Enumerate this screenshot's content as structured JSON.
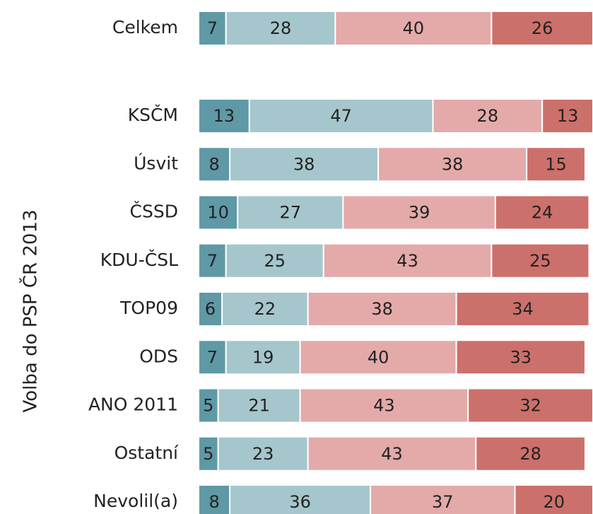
{
  "chart_data": {
    "type": "stacked-bar-horizontal",
    "y_label": "Volba do PSP ČR 2013",
    "categories": [
      "Celkem",
      null,
      "KSČM",
      "Úsvit",
      "ČSSD",
      "KDU-ČSL",
      "TOP09",
      "ODS",
      "ANO 2011",
      "Ostatní",
      "Nevolil(a)"
    ],
    "series": [
      {
        "color": "#5f99a6",
        "values": [
          7,
          null,
          13,
          8,
          10,
          7,
          6,
          7,
          5,
          5,
          8
        ]
      },
      {
        "color": "#a5c6cc",
        "values": [
          28,
          null,
          47,
          38,
          27,
          25,
          22,
          19,
          21,
          23,
          36
        ]
      },
      {
        "color": "#e3aaa9",
        "values": [
          40,
          null,
          28,
          38,
          39,
          43,
          38,
          40,
          43,
          43,
          37
        ]
      },
      {
        "color": "#cc706b",
        "values": [
          26,
          null,
          13,
          15,
          24,
          25,
          34,
          33,
          32,
          28,
          20
        ]
      }
    ],
    "xlim": [
      0,
      101
    ]
  }
}
